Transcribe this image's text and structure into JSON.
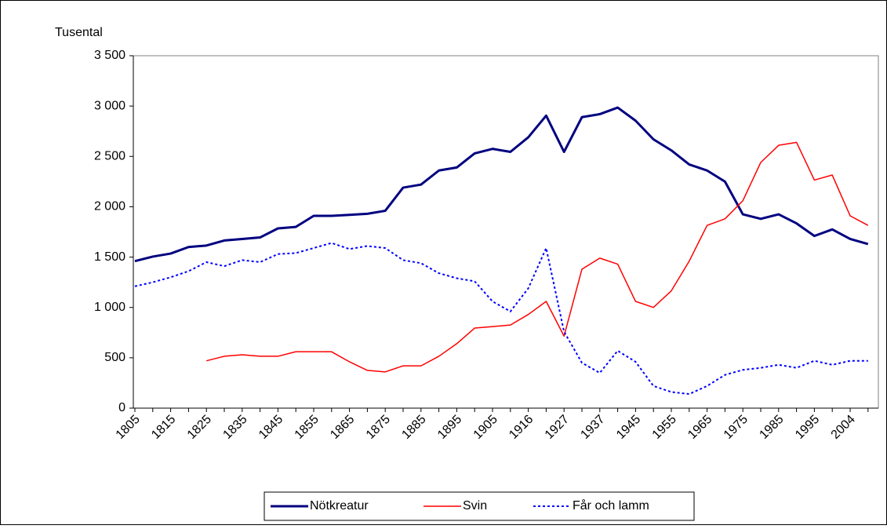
{
  "chart_data": {
    "type": "line",
    "y_label": "Tusental",
    "categories": [
      "1805",
      null,
      "1815",
      null,
      "1825",
      null,
      "1835",
      null,
      "1845",
      null,
      "1855",
      null,
      "1865",
      null,
      "1875",
      null,
      "1885",
      null,
      "1895",
      null,
      "1905",
      null,
      "1916",
      null,
      "1927",
      null,
      "1937",
      null,
      "1945",
      null,
      "1955",
      null,
      "1965",
      null,
      "1975",
      null,
      "1985",
      null,
      "1995",
      null,
      "2004",
      null
    ],
    "series": [
      {
        "name": "Nötkreatur",
        "color": "#000080",
        "width": 3,
        "dash": "solid",
        "values": [
          1460,
          1505,
          1535,
          1600,
          1615,
          1665,
          1680,
          1695,
          1785,
          1800,
          1910,
          1910,
          1920,
          1930,
          1960,
          2190,
          2220,
          2360,
          2390,
          2530,
          2575,
          2545,
          2690,
          2905,
          2545,
          2890,
          2920,
          2985,
          2855,
          2670,
          2560,
          2420,
          2360,
          2250,
          1925,
          1880,
          1925,
          1835,
          1710,
          1775,
          1680,
          1630
        ]
      },
      {
        "name": "Svin",
        "color": "#ff0000",
        "width": 1.5,
        "dash": "solid",
        "values": [
          null,
          null,
          null,
          null,
          470,
          515,
          530,
          515,
          515,
          560,
          560,
          560,
          460,
          375,
          360,
          420,
          420,
          515,
          640,
          795,
          810,
          825,
          930,
          1060,
          715,
          1380,
          1490,
          1430,
          1060,
          1000,
          1165,
          1460,
          1815,
          1880,
          2060,
          2440,
          2610,
          2640,
          2265,
          2315,
          1910,
          1815
        ]
      },
      {
        "name": "Får och lamm",
        "color": "#0000ff",
        "width": 2,
        "dash": "dotted",
        "values": [
          1210,
          1250,
          1300,
          1360,
          1450,
          1410,
          1470,
          1450,
          1530,
          1540,
          1590,
          1640,
          1580,
          1610,
          1590,
          1470,
          1440,
          1340,
          1290,
          1260,
          1060,
          960,
          1190,
          1590,
          760,
          450,
          350,
          570,
          460,
          220,
          160,
          140,
          220,
          330,
          380,
          400,
          430,
          400,
          470,
          430,
          470,
          470
        ]
      }
    ],
    "ylim": [
      0,
      3500
    ],
    "yticks": [
      0,
      500,
      {
        "value": 1000,
        "label": "1 000"
      },
      {
        "value": 1500,
        "label": "1 500"
      },
      {
        "value": 2000,
        "label": "2 000"
      },
      {
        "value": 2500,
        "label": "2 500"
      },
      {
        "value": 3000,
        "label": "3 000"
      },
      {
        "value": 3500,
        "label": "3 500"
      }
    ],
    "grid": false,
    "legend": "bottom"
  }
}
